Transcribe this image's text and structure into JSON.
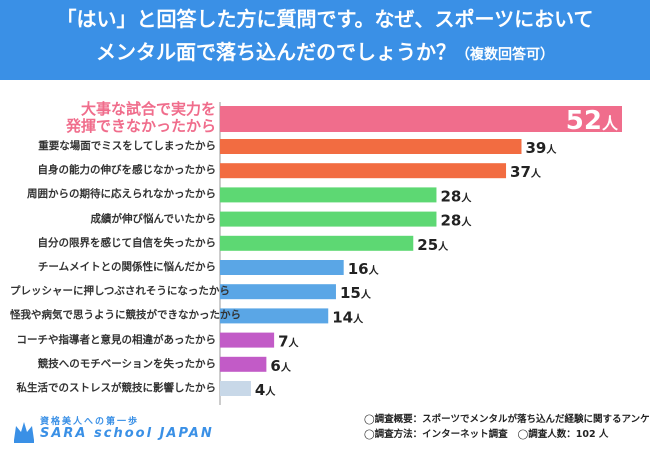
{
  "title": {
    "line1": "「はい」と回答した方に質問です。なぜ、スポーツにおいて",
    "line2": "メンタル面で落ち込んだのでしょうか？",
    "note": "（複数回答可）"
  },
  "chart_data": {
    "type": "bar",
    "orientation": "horizontal",
    "unit": "人",
    "categories": [
      "大事な試合で実力を発揮できなかったから",
      "重要な場面でミスをしてしまったから",
      "自身の能力の伸びを感じなかったから",
      "周囲からの期待に応えられなかったから",
      "成績が伸び悩んでいたから",
      "自分の限界を感じて自信を失ったから",
      "チームメイトとの関係性に悩んだから",
      "プレッシャーに押しつぶされそうになったから",
      "怪我や病気で思うように競技ができなかったから",
      "コーチや指導者と意見の相違があったから",
      "競技へのモチベーションを失ったから",
      "私生活でのストレスが競技に影響したから"
    ],
    "values": [
      52,
      39,
      37,
      28,
      28,
      25,
      16,
      15,
      14,
      7,
      6,
      4
    ],
    "xlim": [
      0,
      52
    ],
    "colors": [
      "#f06d8c",
      "#f26c41",
      "#f26c41",
      "#5dd873",
      "#5dd873",
      "#5dd873",
      "#5aa6e6",
      "#5aa6e6",
      "#5aa6e6",
      "#c25bc7",
      "#c25bc7",
      "#c8d8e8"
    ],
    "top_label_lines": [
      "大事な試合で実力を",
      "発揮できなかったから"
    ]
  },
  "footer": {
    "logo_tag": "資格美人への第一歩",
    "logo_name": "SARA school JAPAN",
    "survey_summary": "◯調査概要：スポーツでメンタルが落ち込んだ経験に関するアンケート",
    "survey_method": "◯調査方法：インターネット調査",
    "respondents": "◯調査人数：102 人"
  },
  "colors": {
    "header": "#3a90e6",
    "axis": "#999999"
  }
}
